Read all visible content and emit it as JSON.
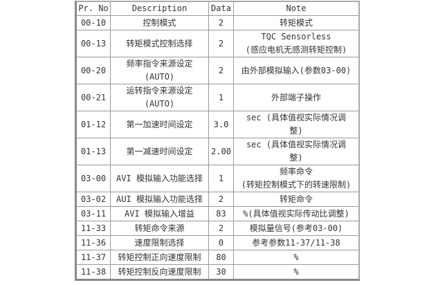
{
  "table": {
    "headers": [
      "Pr. No",
      "Description",
      "Data",
      "Note"
    ],
    "rows": [
      {
        "no": "00-10",
        "desc": [
          "控制模式"
        ],
        "data": "2",
        "note": [
          "转矩模式"
        ]
      },
      {
        "no": "00-13",
        "desc": [
          "转矩模式控制选择"
        ],
        "data": "2",
        "note": [
          "TQC Sensorless",
          "(感应电机无感测转矩控制)"
        ]
      },
      {
        "no": "00-20",
        "desc": [
          "频率指令来源设定",
          "(AUTO)"
        ],
        "data": "2",
        "note": [
          "由外部模拟输入(参数03-00)"
        ]
      },
      {
        "no": "00-21",
        "desc": [
          "运转指令来源设定",
          "(AUTO)"
        ],
        "data": "1",
        "note": [
          "外部端子操作"
        ]
      },
      {
        "no": "01-12",
        "desc": [
          "第一加速时间设定"
        ],
        "data": "3.0",
        "note": [
          "sec (具体值视实际情况调",
          "整)"
        ]
      },
      {
        "no": "01-13",
        "desc": [
          "第一减速时间设定"
        ],
        "data": "2.00",
        "note": [
          "sec (具体值视实际情况调",
          "整)"
        ]
      },
      {
        "no": "03-00",
        "desc": [
          "AVI 模拟输入功能选择"
        ],
        "data": "1",
        "note": [
          "频率命令",
          "(转矩控制模式下的转速限制)"
        ]
      },
      {
        "no": "03-02",
        "desc": [
          "AUI 模拟输入功能选择"
        ],
        "data": "2",
        "note": [
          "转矩命令"
        ]
      },
      {
        "no": "03-11",
        "desc": [
          "AVI 模拟输入增益"
        ],
        "data": "83",
        "note": [
          "%(具体值视实际传动比调整)"
        ]
      },
      {
        "no": "11-33",
        "desc": [
          "转矩命令来源"
        ],
        "data": "2",
        "note": [
          "模拟量信号(参考03-00)"
        ]
      },
      {
        "no": "11-36",
        "desc": [
          "速度限制选择"
        ],
        "data": "0",
        "note": [
          "参考参数11-37/11-38"
        ]
      },
      {
        "no": "11-37",
        "desc": [
          "转矩控制正向速度限制"
        ],
        "data": "80",
        "note": [
          "%"
        ]
      },
      {
        "no": "11-38",
        "desc": [
          "转矩控制反向速度限制"
        ],
        "data": "30",
        "note": [
          "%"
        ]
      }
    ]
  }
}
